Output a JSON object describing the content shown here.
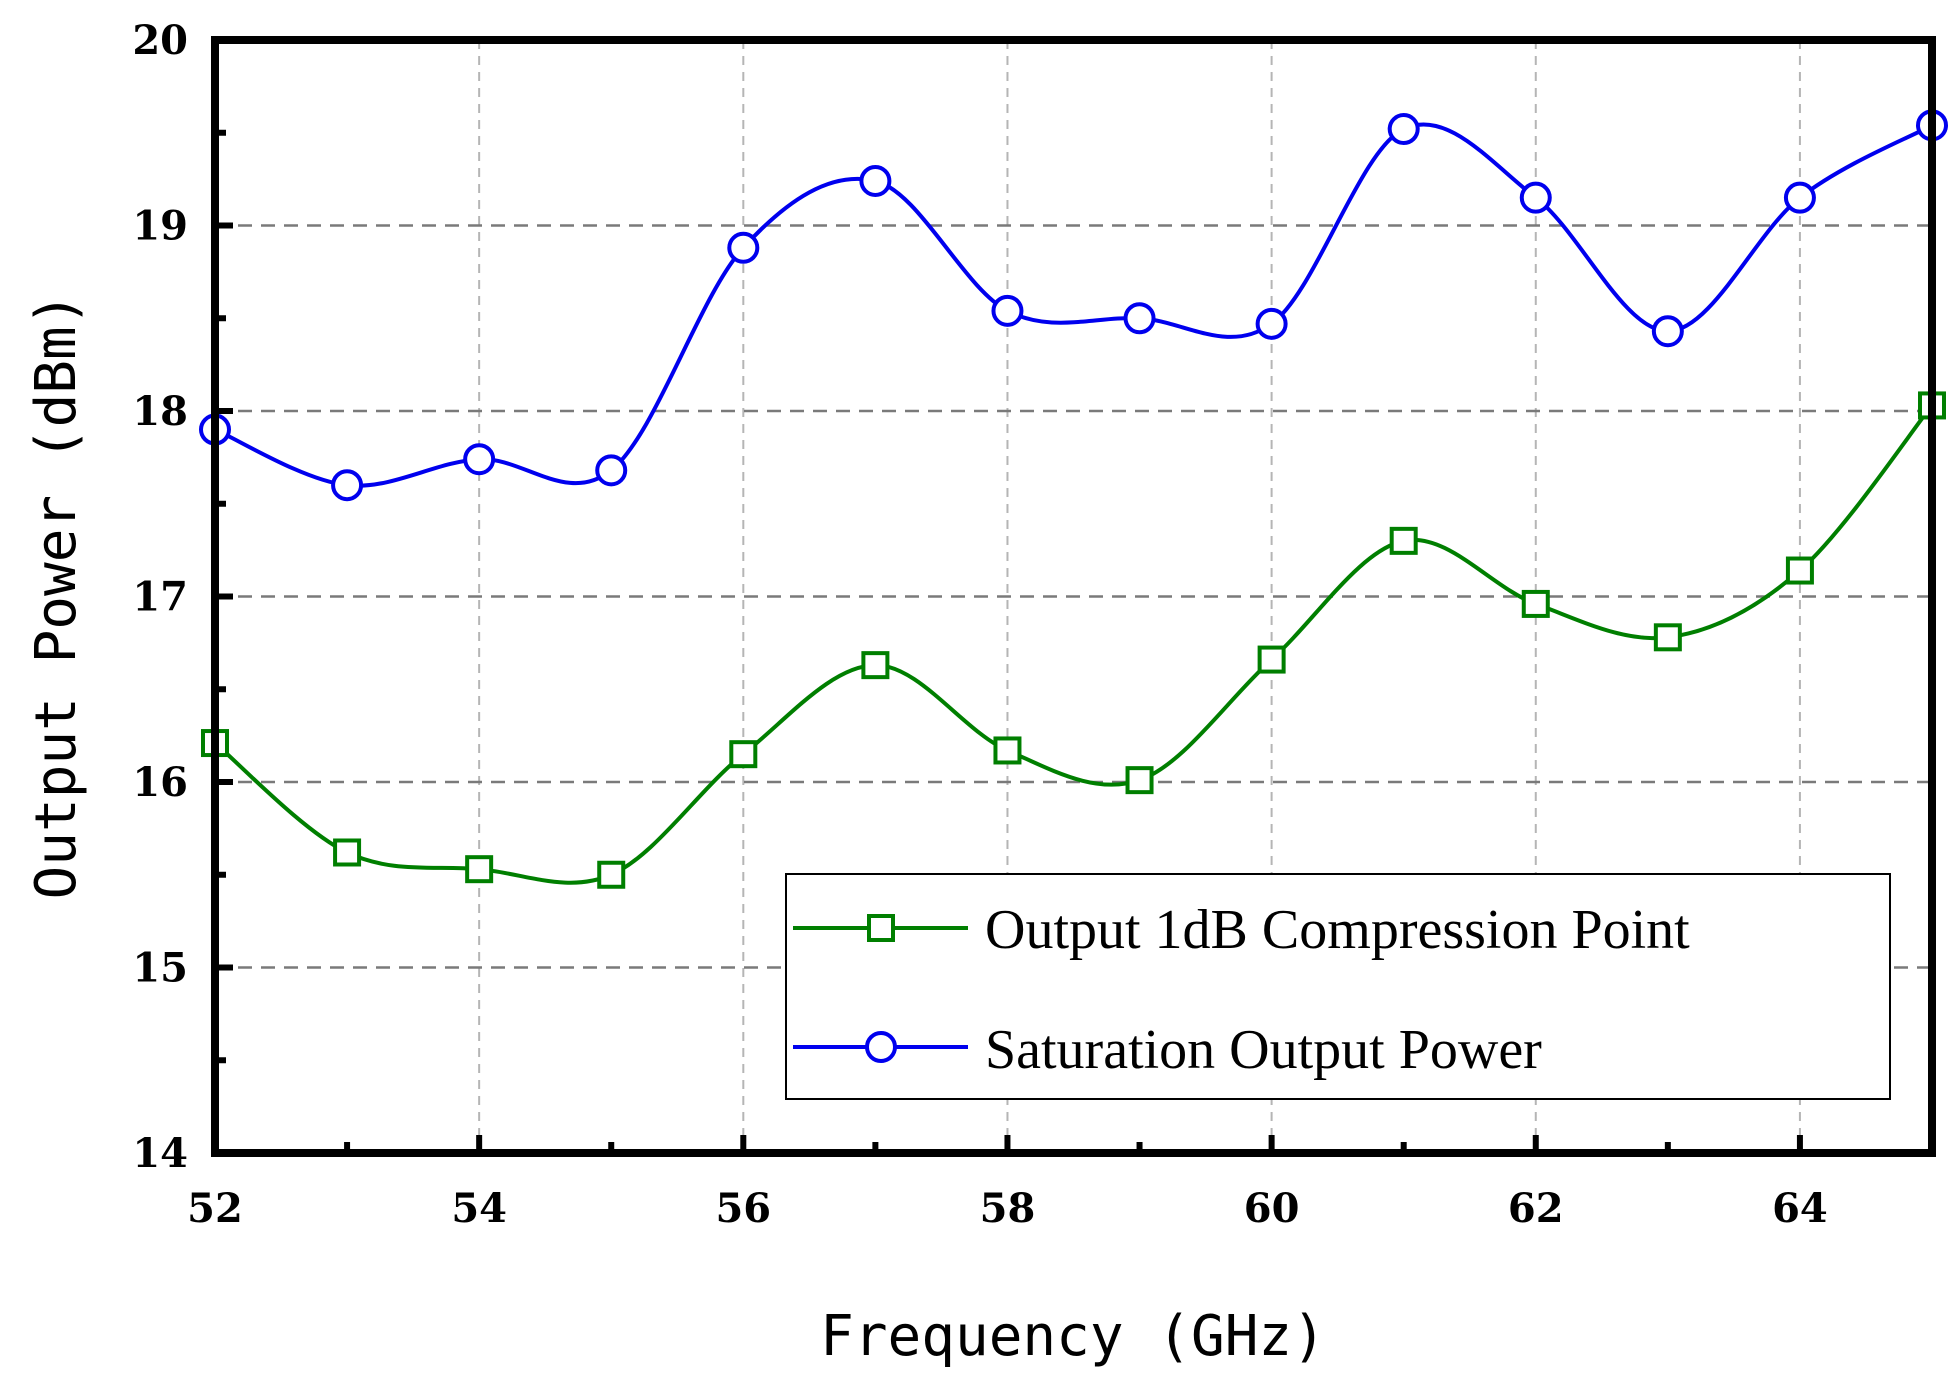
{
  "chart_data": {
    "type": "line",
    "xlabel": "Frequency (GHz)",
    "ylabel": "Output Power (dBm)",
    "xlim": [
      52,
      65
    ],
    "ylim": [
      14,
      20
    ],
    "x_ticks": [
      52,
      54,
      56,
      58,
      60,
      62,
      64
    ],
    "y_ticks": [
      14,
      15,
      16,
      17,
      18,
      19,
      20
    ],
    "grid": true,
    "legend_position": "bottom-right",
    "x": [
      52,
      53,
      54,
      55,
      56,
      57,
      58,
      59,
      60,
      61,
      62,
      63,
      64,
      65
    ],
    "series": [
      {
        "name": "Output 1dB Compression Point",
        "color": "#007f00",
        "marker": "square",
        "values": [
          16.21,
          15.62,
          15.53,
          15.5,
          16.15,
          16.63,
          16.17,
          16.01,
          16.66,
          17.3,
          16.96,
          16.78,
          17.14,
          18.03
        ]
      },
      {
        "name": "Saturation Output Power",
        "color": "#0000ee",
        "marker": "circle",
        "values": [
          17.9,
          17.6,
          17.74,
          17.68,
          18.88,
          19.24,
          18.54,
          18.5,
          18.47,
          19.52,
          19.15,
          18.43,
          19.15,
          19.54
        ]
      }
    ]
  }
}
